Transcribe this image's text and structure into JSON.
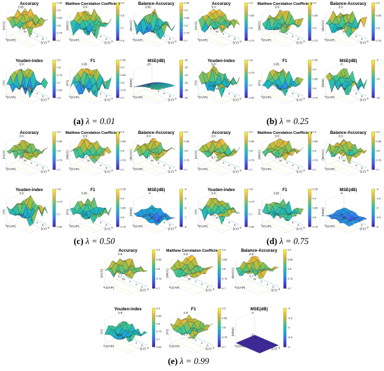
{
  "colors": {
    "colormap": [
      "#3e26a8",
      "#4353f4",
      "#2a8ef3",
      "#17b4cc",
      "#38c79a",
      "#a6bf3e",
      "#f4ba3d",
      "#f9fb15"
    ],
    "mesh": "#2a2a2a",
    "axis": "#444444"
  },
  "panels": [
    {
      "id": "a",
      "caption_letter": "(a)",
      "caption_lambda": "λ = 0.01",
      "subplots": [
        {
          "title": "Accuracy",
          "zlabel": "(ACC)",
          "colorbar_ticks": [
            "0.95",
            "0.9",
            "0.85",
            "0.8",
            "0.75",
            "0.7"
          ],
          "zlim": [
            0.7,
            0.95
          ],
          "base": 0.88,
          "amp": 0.06,
          "tilt": -0.08,
          "shape": "normal"
        },
        {
          "title": "Matthew Correlation Coefficient",
          "zlabel": "(MCC)",
          "colorbar_ticks": [
            "0.9",
            "0.8",
            "0.7",
            "0.6"
          ],
          "zlim": [
            0.6,
            0.9
          ],
          "base": 0.8,
          "amp": 0.08,
          "tilt": -0.1,
          "shape": "spiky"
        },
        {
          "title": "Balance-Accuracy",
          "zlabel": "(BACC)",
          "colorbar_ticks": [
            "0.95",
            "0.9",
            "0.85",
            "0.8",
            "0.75",
            "0.7"
          ],
          "zlim": [
            0.7,
            0.95
          ],
          "base": 0.86,
          "amp": 0.07,
          "tilt": -0.09,
          "shape": "spiky"
        },
        {
          "title": "Youden-index",
          "zlabel": "(YI)",
          "colorbar_ticks": [
            "0.9",
            "0.8",
            "0.75",
            "0.7",
            "0.65",
            "0.6"
          ],
          "zlim": [
            0.6,
            0.9
          ],
          "base": 0.78,
          "amp": 0.09,
          "tilt": -0.12,
          "shape": "spiky"
        },
        {
          "title": "F1",
          "zlabel": "(F1)",
          "colorbar_ticks": [
            "0.95",
            "0.9",
            "0.85",
            "0.8",
            "0.75",
            "0.7"
          ],
          "zlim": [
            0.7,
            0.95
          ],
          "base": 0.86,
          "amp": 0.07,
          "tilt": -0.1,
          "shape": "spiky"
        },
        {
          "title": "MSE(dB)",
          "zlabel": "(MSE)",
          "colorbar_ticks": [
            "-20",
            "-22",
            "-24",
            "-26",
            "-28",
            "-30"
          ],
          "zlim": [
            -30,
            -20
          ],
          "base": -26,
          "amp": 0.0,
          "tilt": 0.0,
          "shape": "smooth"
        }
      ]
    },
    {
      "id": "b",
      "caption_letter": "(b)",
      "caption_lambda": "λ = 0.25",
      "subplots": [
        {
          "title": "Accuracy",
          "zlabel": "(ACC)",
          "colorbar_ticks": [
            "0.9",
            "0.85",
            "0.8",
            "0.75"
          ],
          "zlim": [
            0.75,
            0.9
          ],
          "base": 0.85,
          "amp": 0.04,
          "tilt": -0.05,
          "shape": "normal"
        },
        {
          "title": "Matthew Correlation Coefficient",
          "zlabel": "(MCC)",
          "colorbar_ticks": [
            "0.9",
            "0.85",
            "0.8",
            "0.75"
          ],
          "zlim": [
            0.75,
            0.9
          ],
          "base": 0.85,
          "amp": 0.04,
          "tilt": -0.05,
          "shape": "normal"
        },
        {
          "title": "Balance-Accuracy",
          "zlabel": "(BACC)",
          "colorbar_ticks": [
            "0.9",
            "0.85",
            "0.8",
            "0.75"
          ],
          "zlim": [
            0.75,
            0.9
          ],
          "base": 0.85,
          "amp": 0.04,
          "tilt": -0.05,
          "shape": "normal"
        },
        {
          "title": "Youden-index",
          "zlabel": "(YI)",
          "colorbar_ticks": [
            "0.8",
            "0.75",
            "0.7",
            "0.65"
          ],
          "zlim": [
            0.65,
            0.8
          ],
          "base": 0.74,
          "amp": 0.05,
          "tilt": -0.05,
          "shape": "normal"
        },
        {
          "title": "F1",
          "zlabel": "(F1)",
          "colorbar_ticks": [
            "0.95",
            "0.9",
            "0.85",
            "0.8",
            "0.75"
          ],
          "zlim": [
            0.75,
            0.95
          ],
          "base": 0.86,
          "amp": 0.05,
          "tilt": -0.05,
          "shape": "normal"
        },
        {
          "title": "MSE(dB)",
          "zlabel": "(MSE)",
          "colorbar_ticks": [
            "-5",
            "-10",
            "-15"
          ],
          "zlim": [
            -15,
            -5
          ],
          "base": -9,
          "amp": 3.5,
          "tilt": 0.0,
          "shape": "spiky"
        }
      ]
    },
    {
      "id": "c",
      "caption_letter": "(c)",
      "caption_lambda": "λ = 0.50",
      "subplots": [
        {
          "title": "Accuracy",
          "zlabel": "(ACC)",
          "colorbar_ticks": [
            "0.9",
            "0.85",
            "0.8",
            "0.75",
            "0.7"
          ],
          "zlim": [
            0.7,
            0.9
          ],
          "base": 0.84,
          "amp": 0.04,
          "tilt": -0.05,
          "shape": "normal"
        },
        {
          "title": "Matthew Correlation Coefficient",
          "zlabel": "(MCC)",
          "colorbar_ticks": [
            "0.9",
            "0.85",
            "0.8",
            "0.75",
            "0.7"
          ],
          "zlim": [
            0.7,
            0.9
          ],
          "base": 0.84,
          "amp": 0.04,
          "tilt": -0.05,
          "shape": "normal"
        },
        {
          "title": "Balance-Accuracy",
          "zlabel": "(BACC)",
          "colorbar_ticks": [
            "0.9",
            "0.85",
            "0.8",
            "0.75",
            "0.7"
          ],
          "zlim": [
            0.7,
            0.9
          ],
          "base": 0.84,
          "amp": 0.04,
          "tilt": -0.05,
          "shape": "normal"
        },
        {
          "title": "Youden-index",
          "zlabel": "(YI)",
          "colorbar_ticks": [
            "0.8",
            "0.75",
            "0.7",
            "0.65"
          ],
          "zlim": [
            0.65,
            0.8
          ],
          "base": 0.74,
          "amp": 0.05,
          "tilt": -0.05,
          "shape": "normal"
        },
        {
          "title": "F1",
          "zlabel": "(F1)",
          "colorbar_ticks": [
            "0.95",
            "0.9",
            "0.85",
            "0.8",
            "0.75"
          ],
          "zlim": [
            0.75,
            0.95
          ],
          "base": 0.86,
          "amp": 0.05,
          "tilt": -0.05,
          "shape": "normal"
        },
        {
          "title": "MSE(dB)",
          "zlabel": "(MSE)",
          "colorbar_ticks": [
            "-4",
            "-5",
            "-6",
            "-7",
            "-8"
          ],
          "zlim": [
            -8,
            -4
          ],
          "base": -6.5,
          "amp": 1.3,
          "tilt": 0.0,
          "shape": "dip"
        }
      ]
    },
    {
      "id": "d",
      "caption_letter": "(d)",
      "caption_lambda": "λ = 0.75",
      "subplots": [
        {
          "title": "Accuracy",
          "zlabel": "(ACC)",
          "colorbar_ticks": [
            "0.9",
            "0.85",
            "0.8",
            "0.75",
            "0.7"
          ],
          "zlim": [
            0.7,
            0.9
          ],
          "base": 0.84,
          "amp": 0.04,
          "tilt": -0.04,
          "shape": "normal"
        },
        {
          "title": "Matthew Correlation Coefficient",
          "zlabel": "(MCC)",
          "colorbar_ticks": [
            "0.9",
            "0.85",
            "0.8",
            "0.75",
            "0.7"
          ],
          "zlim": [
            0.7,
            0.9
          ],
          "base": 0.84,
          "amp": 0.04,
          "tilt": -0.04,
          "shape": "normal"
        },
        {
          "title": "Balance-Accuracy",
          "zlabel": "(BACC)",
          "colorbar_ticks": [
            "0.9",
            "0.85",
            "0.8",
            "0.75",
            "0.7"
          ],
          "zlim": [
            0.7,
            0.9
          ],
          "base": 0.84,
          "amp": 0.04,
          "tilt": -0.04,
          "shape": "normal"
        },
        {
          "title": "Youden-index",
          "zlabel": "(YI)",
          "colorbar_ticks": [
            "0.8",
            "0.75",
            "0.7",
            "0.65"
          ],
          "zlim": [
            0.65,
            0.8
          ],
          "base": 0.74,
          "amp": 0.04,
          "tilt": -0.04,
          "shape": "normal"
        },
        {
          "title": "F1",
          "zlabel": "(F1)",
          "colorbar_ticks": [
            "0.95",
            "0.9",
            "0.85",
            "0.8",
            "0.75"
          ],
          "zlim": [
            0.75,
            0.95
          ],
          "base": 0.86,
          "amp": 0.04,
          "tilt": -0.04,
          "shape": "normal"
        },
        {
          "title": "MSE(dB)",
          "zlabel": "(MSE)",
          "colorbar_ticks": [
            "-4",
            "-4.5",
            "-5",
            "-5.5",
            "-6"
          ],
          "zlim": [
            -6,
            -4
          ],
          "base": -5.4,
          "amp": 0.35,
          "tilt": 0.0,
          "shape": "dip"
        }
      ]
    },
    {
      "id": "e",
      "caption_letter": "(e)",
      "caption_lambda": "λ = 0.99",
      "subplots": [
        {
          "title": "Accuracy",
          "zlabel": "(ACC)",
          "colorbar_ticks": [
            "0.9",
            "0.85",
            "0.8",
            "0.75",
            "0.7"
          ],
          "zlim": [
            0.7,
            0.9
          ],
          "base": 0.84,
          "amp": 0.04,
          "tilt": -0.04,
          "shape": "normal"
        },
        {
          "title": "Matthew Correlation Coefficient",
          "zlabel": "(MCC)",
          "colorbar_ticks": [
            "0.9",
            "0.85",
            "0.8",
            "0.75",
            "0.7"
          ],
          "zlim": [
            0.7,
            0.9
          ],
          "base": 0.84,
          "amp": 0.04,
          "tilt": -0.04,
          "shape": "normal"
        },
        {
          "title": "Balance-Accuracy",
          "zlabel": "(BACC)",
          "colorbar_ticks": [
            "0.9",
            "0.85",
            "0.8",
            "0.75",
            "0.7"
          ],
          "zlim": [
            0.7,
            0.9
          ],
          "base": 0.84,
          "amp": 0.04,
          "tilt": -0.04,
          "shape": "normal"
        },
        {
          "title": "Youden-index",
          "zlabel": "(YI)",
          "colorbar_ticks": [
            "0.9",
            "0.85",
            "0.8",
            "0.75",
            "0.7",
            "0.65"
          ],
          "zlim": [
            0.65,
            0.9
          ],
          "base": 0.77,
          "amp": 0.05,
          "tilt": -0.04,
          "shape": "normal"
        },
        {
          "title": "F1",
          "zlabel": "(F1)",
          "colorbar_ticks": [
            "0.9",
            "0.85",
            "0.8",
            "0.75",
            "0.7"
          ],
          "zlim": [
            0.7,
            0.9
          ],
          "base": 0.84,
          "amp": 0.04,
          "tilt": -0.04,
          "shape": "normal"
        },
        {
          "title": "MSE(dB)",
          "zlabel": "(MSE)",
          "colorbar_ticks": [
            "-4",
            "-4.5",
            "-5",
            "-5.5",
            "-6"
          ],
          "zlim": [
            -6,
            -4
          ],
          "base": -6,
          "amp": 0.0,
          "tilt": 0.0,
          "shape": "flat"
        }
      ]
    }
  ],
  "axes": {
    "x_label": "(LV)",
    "y_label": "(GAP)",
    "x_ticks": [
      "0",
      "2",
      "4",
      "6",
      "8"
    ],
    "y_ticks": [
      "0",
      "5"
    ]
  },
  "chart_data": [
    {
      "type": "surface",
      "panel": "(a) λ = 0.01",
      "title": "Accuracy",
      "xlabel": "(LV)",
      "ylabel": "(GAP)",
      "zlabel": "(ACC)",
      "zlim": [
        0.7,
        0.95
      ]
    },
    {
      "type": "surface",
      "panel": "(a) λ = 0.01",
      "title": "Matthew Correlation Coefficient",
      "xlabel": "(LV)",
      "ylabel": "(GAP)",
      "zlabel": "(MCC)",
      "zlim": [
        0.6,
        0.9
      ]
    },
    {
      "type": "surface",
      "panel": "(a) λ = 0.01",
      "title": "Balance-Accuracy",
      "xlabel": "(LV)",
      "ylabel": "(GAP)",
      "zlabel": "(BACC)",
      "zlim": [
        0.7,
        0.95
      ]
    },
    {
      "type": "surface",
      "panel": "(a) λ = 0.01",
      "title": "Youden-index",
      "xlabel": "(LV)",
      "ylabel": "(GAP)",
      "zlabel": "(YI)",
      "zlim": [
        0.6,
        0.9
      ]
    },
    {
      "type": "surface",
      "panel": "(a) λ = 0.01",
      "title": "F1",
      "xlabel": "(LV)",
      "ylabel": "(GAP)",
      "zlabel": "(F1)",
      "zlim": [
        0.7,
        0.95
      ]
    },
    {
      "type": "surface",
      "panel": "(a) λ = 0.01",
      "title": "MSE(dB)",
      "xlabel": "(LV)",
      "ylabel": "(GAP)",
      "zlabel": "(MSE)",
      "zlim": [
        -30,
        -20
      ]
    },
    {
      "type": "surface",
      "panel": "(b) λ = 0.25",
      "title": "Accuracy",
      "zlim": [
        0.75,
        0.9
      ]
    },
    {
      "type": "surface",
      "panel": "(b) λ = 0.25",
      "title": "Matthew Correlation Coefficient",
      "zlim": [
        0.75,
        0.9
      ]
    },
    {
      "type": "surface",
      "panel": "(b) λ = 0.25",
      "title": "Balance-Accuracy",
      "zlim": [
        0.75,
        0.9
      ]
    },
    {
      "type": "surface",
      "panel": "(b) λ = 0.25",
      "title": "Youden-index",
      "zlim": [
        0.65,
        0.8
      ]
    },
    {
      "type": "surface",
      "panel": "(b) λ = 0.25",
      "title": "F1",
      "zlim": [
        0.75,
        0.95
      ]
    },
    {
      "type": "surface",
      "panel": "(b) λ = 0.25",
      "title": "MSE(dB)",
      "zlim": [
        -15,
        -5
      ]
    },
    {
      "type": "surface",
      "panel": "(c) λ = 0.50",
      "title": "Accuracy",
      "zlim": [
        0.7,
        0.9
      ]
    },
    {
      "type": "surface",
      "panel": "(c) λ = 0.50",
      "title": "Matthew Correlation Coefficient",
      "zlim": [
        0.7,
        0.9
      ]
    },
    {
      "type": "surface",
      "panel": "(c) λ = 0.50",
      "title": "Balance-Accuracy",
      "zlim": [
        0.7,
        0.9
      ]
    },
    {
      "type": "surface",
      "panel": "(c) λ = 0.50",
      "title": "Youden-index",
      "zlim": [
        0.65,
        0.8
      ]
    },
    {
      "type": "surface",
      "panel": "(c) λ = 0.50",
      "title": "F1",
      "zlim": [
        0.75,
        0.95
      ]
    },
    {
      "type": "surface",
      "panel": "(c) λ = 0.50",
      "title": "MSE(dB)",
      "zlim": [
        -8,
        -4
      ]
    },
    {
      "type": "surface",
      "panel": "(d) λ = 0.75",
      "title": "Accuracy",
      "zlim": [
        0.7,
        0.9
      ]
    },
    {
      "type": "surface",
      "panel": "(d) λ = 0.75",
      "title": "Matthew Correlation Coefficient",
      "zlim": [
        0.7,
        0.9
      ]
    },
    {
      "type": "surface",
      "panel": "(d) λ = 0.75",
      "title": "Balance-Accuracy",
      "zlim": [
        0.7,
        0.9
      ]
    },
    {
      "type": "surface",
      "panel": "(d) λ = 0.75",
      "title": "Youden-index",
      "zlim": [
        0.65,
        0.8
      ]
    },
    {
      "type": "surface",
      "panel": "(d) λ = 0.75",
      "title": "F1",
      "zlim": [
        0.75,
        0.95
      ]
    },
    {
      "type": "surface",
      "panel": "(d) λ = 0.75",
      "title": "MSE(dB)",
      "zlim": [
        -6,
        -4
      ]
    },
    {
      "type": "surface",
      "panel": "(e) λ = 0.99",
      "title": "Accuracy",
      "zlim": [
        0.7,
        0.9
      ]
    },
    {
      "type": "surface",
      "panel": "(e) λ = 0.99",
      "title": "Matthew Correlation Coefficient",
      "zlim": [
        0.7,
        0.9
      ]
    },
    {
      "type": "surface",
      "panel": "(e) λ = 0.99",
      "title": "Balance-Accuracy",
      "zlim": [
        0.7,
        0.9
      ]
    },
    {
      "type": "surface",
      "panel": "(e) λ = 0.99",
      "title": "Youden-index",
      "zlim": [
        0.65,
        0.9
      ]
    },
    {
      "type": "surface",
      "panel": "(e) λ = 0.99",
      "title": "F1",
      "zlim": [
        0.7,
        0.9
      ]
    },
    {
      "type": "surface",
      "panel": "(e) λ = 0.99",
      "title": "MSE(dB)",
      "zlim": [
        -6,
        -4
      ]
    }
  ]
}
